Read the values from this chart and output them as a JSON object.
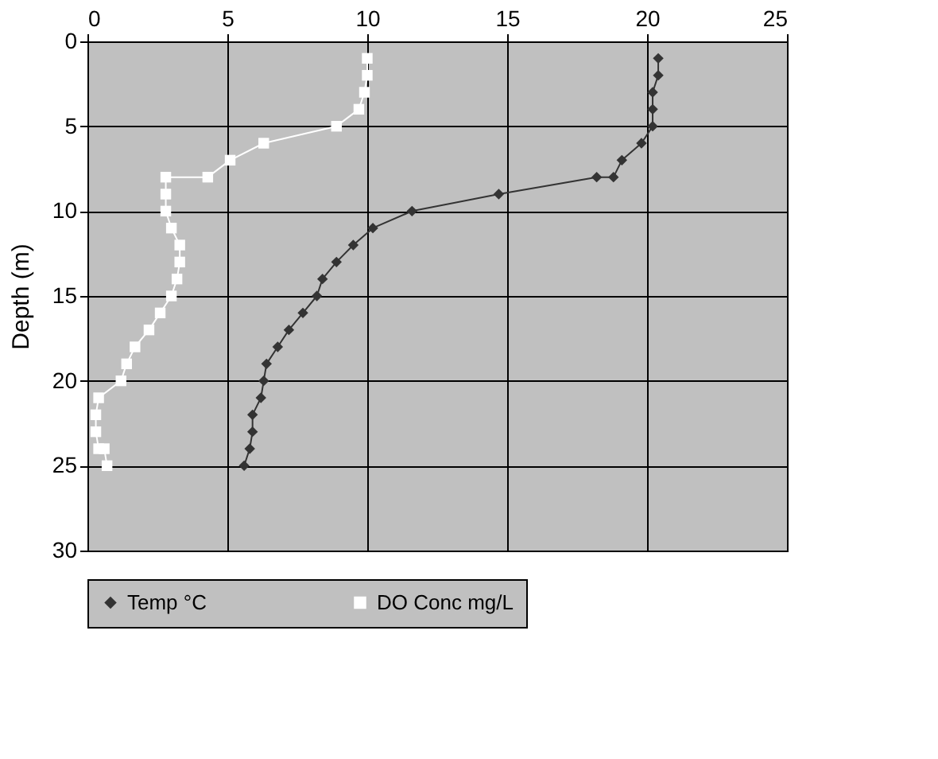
{
  "chart_data": {
    "type": "line",
    "ylabel": "Depth (m)",
    "xlim": [
      0,
      25
    ],
    "xticks": [
      0,
      5,
      10,
      15,
      20,
      25
    ],
    "ylim": [
      30,
      0
    ],
    "yticks": [
      0,
      5,
      10,
      15,
      20,
      25,
      30
    ],
    "grid": true,
    "legend": "bottom",
    "line_style": "solid",
    "series": [
      {
        "name": "Temp °C",
        "color": "#333333",
        "marker": "diamond",
        "x": [
          20.4,
          20.4,
          20.2,
          20.2,
          20.2,
          19.8,
          19.1,
          18.8,
          18.2,
          14.7,
          11.6,
          10.2,
          9.5,
          8.9,
          8.4,
          8.2,
          7.7,
          7.2,
          6.8,
          6.4,
          6.3,
          6.2,
          5.9,
          5.9,
          5.8,
          5.6
        ],
        "values": [
          1,
          2,
          3,
          4,
          5,
          6,
          7,
          8,
          8,
          9,
          10,
          11,
          12,
          13,
          14,
          15,
          16,
          17,
          18,
          19,
          20,
          21,
          22,
          23,
          24,
          25
        ]
      },
      {
        "name": "DO Conc mg/L",
        "color": "#ffffff",
        "marker": "square",
        "x": [
          10.0,
          10.0,
          9.9,
          9.7,
          8.9,
          6.3,
          5.1,
          4.3,
          2.8,
          2.8,
          2.8,
          3.0,
          3.3,
          3.3,
          3.2,
          3.0,
          2.6,
          2.2,
          1.7,
          1.4,
          1.2,
          0.4,
          0.3,
          0.3,
          0.4,
          0.6,
          0.7
        ],
        "values": [
          1,
          2,
          3,
          4,
          5,
          6,
          7,
          8,
          8,
          9,
          10,
          11,
          12,
          13,
          14,
          15,
          16,
          17,
          18,
          19,
          20,
          21,
          22,
          23,
          24,
          24,
          25
        ]
      }
    ]
  }
}
